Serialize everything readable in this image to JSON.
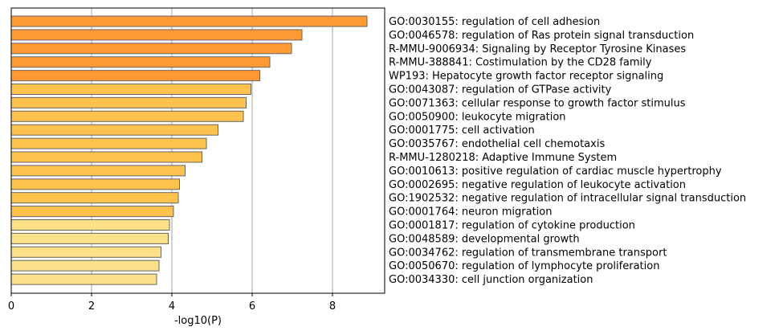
{
  "chart_data": {
    "type": "bar",
    "orientation": "horizontal",
    "xlabel": "-log10(P)",
    "xlim": [
      0,
      9.3
    ],
    "xticks": [
      0,
      2,
      4,
      6,
      8
    ],
    "grid": "vertical",
    "categories": [
      "GO:0030155: regulation of cell adhesion",
      "GO:0046578: regulation of Ras protein signal transduction",
      "R-MMU-9006934: Signaling by Receptor Tyrosine Kinases",
      "R-MMU-388841: Costimulation by the CD28 family",
      "WP193: Hepatocyte growth factor receptor signaling",
      "GO:0043087: regulation of GTPase activity",
      "GO:0071363: cellular response to growth factor stimulus",
      "GO:0050900: leukocyte migration",
      "GO:0001775: cell activation",
      "GO:0035767: endothelial cell chemotaxis",
      "R-MMU-1280218: Adaptive Immune System",
      "GO:0010613: positive regulation of cardiac muscle hypertrophy",
      "GO:0002695: negative regulation of leukocyte activation",
      "GO:1902532: negative regulation of intracellular signal transduction",
      "GO:0001764: neuron migration",
      "GO:0001817: regulation of cytokine production",
      "GO:0048589: developmental growth",
      "GO:0034762: regulation of transmembrane transport",
      "GO:0050670: regulation of lymphocyte proliferation",
      "GO:0034330: cell junction organization"
    ],
    "values": [
      8.86,
      7.24,
      6.98,
      6.44,
      6.19,
      5.97,
      5.85,
      5.78,
      5.15,
      4.86,
      4.75,
      4.33,
      4.19,
      4.16,
      4.04,
      3.94,
      3.91,
      3.73,
      3.68,
      3.62
    ],
    "colors": [
      "#ff9933",
      "#ff9933",
      "#ff9933",
      "#ff9933",
      "#ff9933",
      "#ffc24d",
      "#ffc24d",
      "#ffc24d",
      "#ffc24d",
      "#ffc24d",
      "#ffc24d",
      "#ffc24d",
      "#ffc24d",
      "#ffc24d",
      "#ffc24d",
      "#ffe08a",
      "#ffe08a",
      "#ffe08a",
      "#ffe08a",
      "#ffe08a"
    ],
    "bar_edge_color": "#666666",
    "grid_color": "#b0b0b0"
  }
}
